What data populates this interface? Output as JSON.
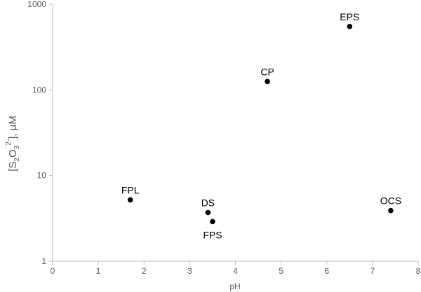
{
  "chart_data": {
    "type": "scatter",
    "title": "",
    "xlabel": "pH",
    "ylabel": {
      "prefix": "[S",
      "sub1": "2",
      "mid": "O",
      "sub2": "3",
      "sup": "2-",
      "suffix": "], µM"
    },
    "xlim": [
      0,
      8
    ],
    "ylim": [
      1,
      1000
    ],
    "yscale": "log",
    "grid": false,
    "legend": "none",
    "x_ticks": [
      "0",
      "1",
      "2",
      "3",
      "4",
      "5",
      "6",
      "7",
      "8"
    ],
    "y_ticks": [
      "1",
      "10",
      "100",
      "1000"
    ],
    "points": [
      {
        "label": "EPS",
        "x": 6.5,
        "y": 550
      },
      {
        "label": "CP",
        "x": 4.7,
        "y": 125
      },
      {
        "label": "FPL",
        "x": 1.7,
        "y": 5.2
      },
      {
        "label": "DS",
        "x": 3.4,
        "y": 3.7
      },
      {
        "label": "FPS",
        "x": 3.5,
        "y": 2.9
      },
      {
        "label": "OCS",
        "x": 7.4,
        "y": 3.9
      }
    ],
    "colors": {
      "point": "#000000",
      "axis": "#bfbfbf",
      "text": "#595959"
    }
  }
}
